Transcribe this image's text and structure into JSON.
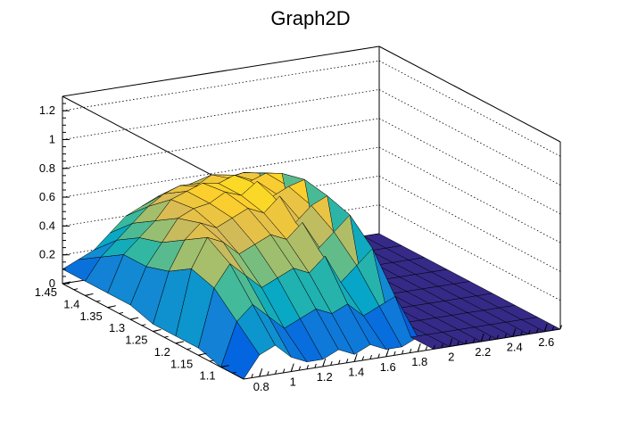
{
  "chart_data": {
    "type": "surface",
    "title": "Graph2D",
    "xlabel": "",
    "ylabel": "",
    "zlabel": "",
    "x_range": [
      0.7,
      2.7
    ],
    "y_range": [
      1.05,
      1.45
    ],
    "z_range": [
      0,
      1.3
    ],
    "x_ticks": [
      0.8,
      1,
      1.2,
      1.4,
      1.6,
      1.8,
      2,
      2.2,
      2.4,
      2.6
    ],
    "x_tick_labels": [
      "0.8",
      "1",
      "1.2",
      "1.4",
      "1.6",
      "1.8",
      "2",
      "2.2",
      "2.4",
      "2.6"
    ],
    "y_ticks": [
      1.1,
      1.15,
      1.2,
      1.25,
      1.3,
      1.35,
      1.4,
      1.45
    ],
    "y_tick_labels": [
      "1.1",
      "1.15",
      "1.2",
      "1.25",
      "1.3",
      "1.35",
      "1.4",
      "1.45"
    ],
    "z_ticks": [
      0,
      0.2,
      0.4,
      0.6,
      0.8,
      1,
      1.2
    ],
    "z_tick_labels": [
      "0",
      "0.2",
      "0.4",
      "0.6",
      "0.8",
      "1",
      "1.2"
    ],
    "grid": true,
    "colormap": [
      "#352a87",
      "#0363e1",
      "#1485d4",
      "#06a7c6",
      "#38b99e",
      "#92bf73",
      "#d9ba56",
      "#fcce2e",
      "#f9fb0e"
    ],
    "x_grid": [
      0.7,
      0.8,
      0.9,
      1.0,
      1.1,
      1.2,
      1.3,
      1.4,
      1.5,
      1.6,
      1.7,
      1.8,
      1.9,
      2.0,
      2.1,
      2.2,
      2.3,
      2.4,
      2.5,
      2.6,
      2.7
    ],
    "y_grid": [
      1.05,
      1.1,
      1.15,
      1.2,
      1.25,
      1.3,
      1.35,
      1.4,
      1.45
    ],
    "z_values": [
      [
        0.0,
        0.15,
        0.2,
        0.1,
        0.05,
        0.05,
        0.1,
        0.05,
        0.1,
        0.05,
        0.05,
        0.1,
        0.0,
        0.0,
        0.0,
        0.0,
        0.0,
        0.0,
        0.0,
        0.0,
        0.0
      ],
      [
        0.0,
        0.3,
        0.4,
        0.3,
        0.2,
        0.25,
        0.3,
        0.25,
        0.3,
        0.2,
        0.25,
        0.3,
        0.0,
        0.0,
        0.0,
        0.0,
        0.0,
        0.0,
        0.0,
        0.0,
        0.0
      ],
      [
        0.05,
        0.45,
        0.6,
        0.5,
        0.4,
        0.45,
        0.5,
        0.45,
        0.55,
        0.35,
        0.45,
        0.55,
        0.05,
        0.0,
        0.0,
        0.0,
        0.0,
        0.0,
        0.0,
        0.0,
        0.0
      ],
      [
        0.05,
        0.5,
        0.7,
        0.65,
        0.55,
        0.6,
        0.65,
        0.6,
        0.7,
        0.5,
        0.6,
        0.7,
        0.05,
        0.0,
        0.0,
        0.0,
        0.0,
        0.0,
        0.0,
        0.0,
        0.0
      ],
      [
        0.05,
        0.4,
        0.6,
        0.7,
        0.65,
        0.7,
        0.75,
        0.7,
        0.8,
        0.6,
        0.7,
        0.75,
        0.1,
        0.0,
        0.0,
        0.0,
        0.0,
        0.0,
        0.0,
        0.0,
        0.0
      ],
      [
        0.1,
        0.35,
        0.5,
        0.65,
        0.7,
        0.72,
        0.78,
        0.74,
        0.82,
        0.7,
        0.75,
        0.78,
        0.15,
        0.0,
        0.0,
        0.0,
        0.0,
        0.0,
        0.0,
        0.0,
        0.0
      ],
      [
        0.1,
        0.35,
        0.45,
        0.55,
        0.68,
        0.72,
        0.76,
        0.74,
        0.78,
        0.72,
        0.76,
        0.74,
        0.2,
        0.0,
        0.0,
        0.0,
        0.0,
        0.0,
        0.0,
        0.0,
        0.0
      ],
      [
        0.1,
        0.25,
        0.35,
        0.45,
        0.55,
        0.62,
        0.66,
        0.64,
        0.7,
        0.66,
        0.68,
        0.66,
        0.25,
        0.0,
        0.0,
        0.0,
        0.0,
        0.0,
        0.0,
        0.0,
        0.0
      ],
      [
        0.1,
        0.15,
        0.2,
        0.3,
        0.4,
        0.45,
        0.5,
        0.5,
        0.55,
        0.52,
        0.55,
        0.5,
        0.2,
        0.0,
        0.0,
        0.0,
        0.0,
        0.0,
        0.0,
        0.0,
        0.0
      ]
    ]
  }
}
